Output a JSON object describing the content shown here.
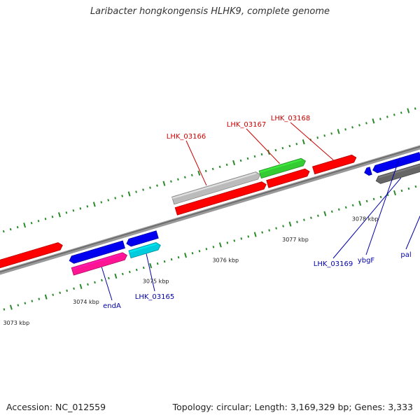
{
  "title": "Laribacter hongkongensis HLHK9, complete genome",
  "footer": {
    "accession": "Accession: NC_012559",
    "summary": "Topology: circular; Length: 3,169,329 bp; Genes: 3,333"
  },
  "colors": {
    "background": "#ffffff",
    "backbone": "#888888",
    "tick": "#2a8a2a",
    "label_top": "#cc0000",
    "label_bottom": "#0000aa"
  },
  "chart_data": {
    "type": "genome_map",
    "coordinate_labels": [
      {
        "label": "3073 kbp",
        "kbp": 3073
      },
      {
        "label": "3074 kbp",
        "kbp": 3074
      },
      {
        "label": "3075 kbp",
        "kbp": 3075
      },
      {
        "label": "3076 kbp",
        "kbp": 3076
      },
      {
        "label": "3077 kbp",
        "kbp": 3077
      },
      {
        "label": "3078 kbp",
        "kbp": 3078
      },
      {
        "label": "3079 kbp",
        "kbp": 3079
      }
    ],
    "genes": [
      {
        "id": "g1",
        "strand": "+",
        "track": "forward",
        "color": "#ff0000",
        "start_kbp": 3072.7,
        "end_kbp": 3073.92
      },
      {
        "id": "g2",
        "strand": "-",
        "track": "reverse",
        "color": "#0000ee",
        "start_kbp": 3073.95,
        "end_kbp": 3074.73
      },
      {
        "id": "g3",
        "strand": "+",
        "track": "reverse_rna",
        "color": "#ff1493",
        "start_kbp": 3073.95,
        "end_kbp": 3074.73,
        "label": "endA"
      },
      {
        "id": "g4",
        "strand": "-",
        "track": "reverse",
        "color": "#0000ee",
        "start_kbp": 3074.77,
        "end_kbp": 3075.21
      },
      {
        "id": "g5",
        "strand": "+",
        "track": "reverse_rna",
        "color": "#00ccdd",
        "start_kbp": 3074.77,
        "end_kbp": 3075.21,
        "label": "LHK_03165"
      },
      {
        "id": "g6",
        "strand": "+",
        "track": "forward_rna",
        "color": "#bbbbbb",
        "start_kbp": 3075.55,
        "end_kbp": 3076.8,
        "label": "LHK_03166"
      },
      {
        "id": "g7",
        "strand": "+",
        "track": "forward_rna",
        "color": "#33cc33",
        "start_kbp": 3076.8,
        "end_kbp": 3077.45,
        "label": "LHK_03167"
      },
      {
        "id": "g8",
        "strand": "+",
        "track": "forward",
        "color": "#ff0000",
        "start_kbp": 3075.55,
        "end_kbp": 3076.84
      },
      {
        "id": "g9",
        "strand": "+",
        "track": "forward",
        "color": "#ff0000",
        "start_kbp": 3076.86,
        "end_kbp": 3077.46
      },
      {
        "id": "g10",
        "strand": "+",
        "track": "forward",
        "color": "#ff0000",
        "start_kbp": 3077.52,
        "end_kbp": 3078.13,
        "label": "LHK_03168"
      },
      {
        "id": "g11",
        "strand": "-",
        "track": "reverse",
        "color": "#0000ee",
        "start_kbp": 3078.18,
        "end_kbp": 3078.27
      },
      {
        "id": "g12",
        "strand": "-",
        "track": "reverse",
        "color": "#0000ee",
        "start_kbp": 3078.3,
        "end_kbp": 3078.98
      },
      {
        "id": "g13",
        "strand": "-",
        "track": "reverse_rna",
        "color": "#666666",
        "start_kbp": 3078.3,
        "end_kbp": 3078.98,
        "label": "LHK_03169"
      },
      {
        "id": "g14",
        "strand": "-",
        "track": "reverse_rna",
        "color": "#66aa11",
        "start_kbp": 3079.0,
        "end_kbp": 3079.44,
        "label": "pal"
      },
      {
        "id": "g15",
        "strand": "-",
        "track": "reverse",
        "color": "#0000ee",
        "start_kbp": 3079.0,
        "end_kbp": 3079.44
      },
      {
        "id": "g16",
        "strand": "-",
        "track": "reverse",
        "color": "#0000ee",
        "start_kbp": 3079.47,
        "end_kbp": 3079.6
      },
      {
        "id": "g17",
        "strand": "+",
        "track": "reverse_rna",
        "color": "#88ff00",
        "start_kbp": 3079.47,
        "end_kbp": 3079.6
      }
    ],
    "gene_labels": [
      {
        "text": "LHK_03166",
        "side": "top",
        "color": "#cc0000"
      },
      {
        "text": "LHK_03167",
        "side": "top",
        "color": "#cc0000"
      },
      {
        "text": "LHK_03168",
        "side": "top",
        "color": "#cc0000"
      },
      {
        "text": "endA",
        "side": "bottom",
        "color": "#0000aa"
      },
      {
        "text": "LHK_03165",
        "side": "bottom",
        "color": "#0000aa"
      },
      {
        "text": "LHK_03169",
        "side": "bottom",
        "color": "#0000aa"
      },
      {
        "text": "ybgF",
        "side": "bottom",
        "color": "#0000aa"
      },
      {
        "text": "pal",
        "side": "bottom",
        "color": "#0000aa"
      }
    ]
  }
}
